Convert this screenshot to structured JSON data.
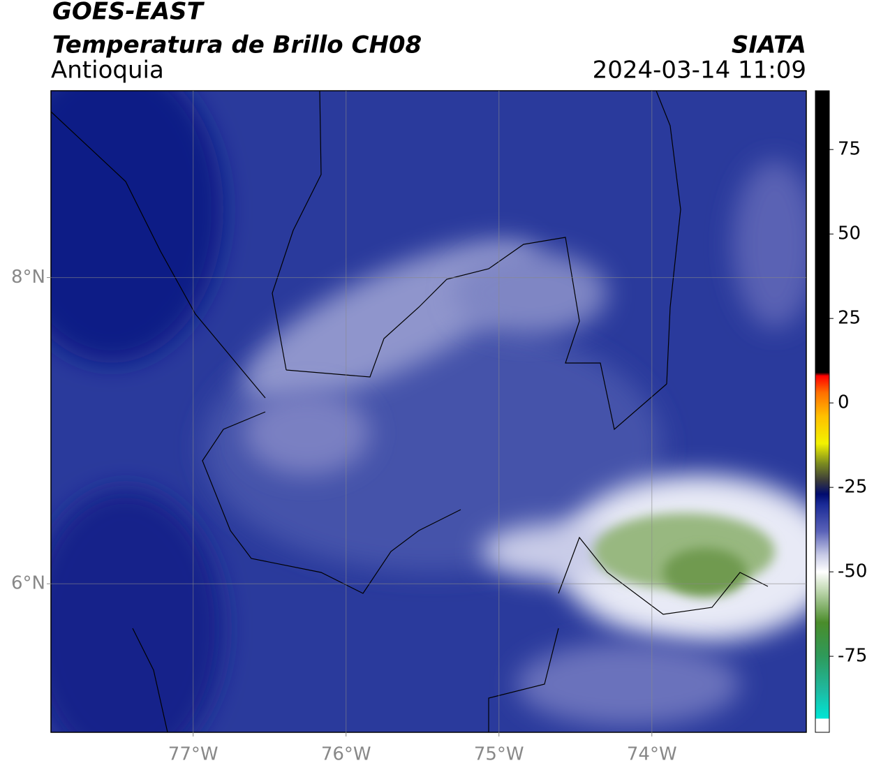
{
  "header": {
    "title": "GOES-EAST",
    "subtitle": "Temperatura de Brillo CH08",
    "region": "Antioquia",
    "source": "SIATA",
    "datetime": "2024-03-14 11:09"
  },
  "map": {
    "xlim": [
      -77.93,
      -72.99
    ],
    "ylim": [
      5.03,
      9.22
    ],
    "xticks": [
      {
        "value": -77,
        "label": "77°W"
      },
      {
        "value": -76,
        "label": "76°W"
      },
      {
        "value": -75,
        "label": "75°W"
      },
      {
        "value": -74,
        "label": "74°W"
      }
    ],
    "yticks": [
      {
        "value": 8,
        "label": "8°N"
      },
      {
        "value": 6,
        "label": "6°N"
      }
    ],
    "grid": true
  },
  "colorbar": {
    "lim": [
      -97.5,
      92.4
    ],
    "ticks": [
      75,
      50,
      25,
      0,
      -25,
      -50,
      -75
    ],
    "stops": [
      {
        "value": -97.5,
        "color": "#ffffff"
      },
      {
        "value": -93.5,
        "color": "#ffffff"
      },
      {
        "value": -93.4,
        "color": "#00e5d5"
      },
      {
        "value": -85,
        "color": "#1fb9a0"
      },
      {
        "value": -75,
        "color": "#2e9a5a"
      },
      {
        "value": -65,
        "color": "#4a8c2a"
      },
      {
        "value": -55,
        "color": "#c6dcb8"
      },
      {
        "value": -50,
        "color": "#ffffff"
      },
      {
        "value": -45,
        "color": "#c8cbe6"
      },
      {
        "value": -38,
        "color": "#5a62b8"
      },
      {
        "value": -30,
        "color": "#1a2a96"
      },
      {
        "value": -27,
        "color": "#000b6e"
      },
      {
        "value": -23,
        "color": "#3a3a3a"
      },
      {
        "value": -18,
        "color": "#7a8a20"
      },
      {
        "value": -12,
        "color": "#f2f200"
      },
      {
        "value": -4,
        "color": "#ffc000"
      },
      {
        "value": 3,
        "color": "#ff7000"
      },
      {
        "value": 8,
        "color": "#ff0000"
      },
      {
        "value": 9,
        "color": "#000000"
      },
      {
        "value": 92.4,
        "color": "#000000"
      }
    ]
  }
}
